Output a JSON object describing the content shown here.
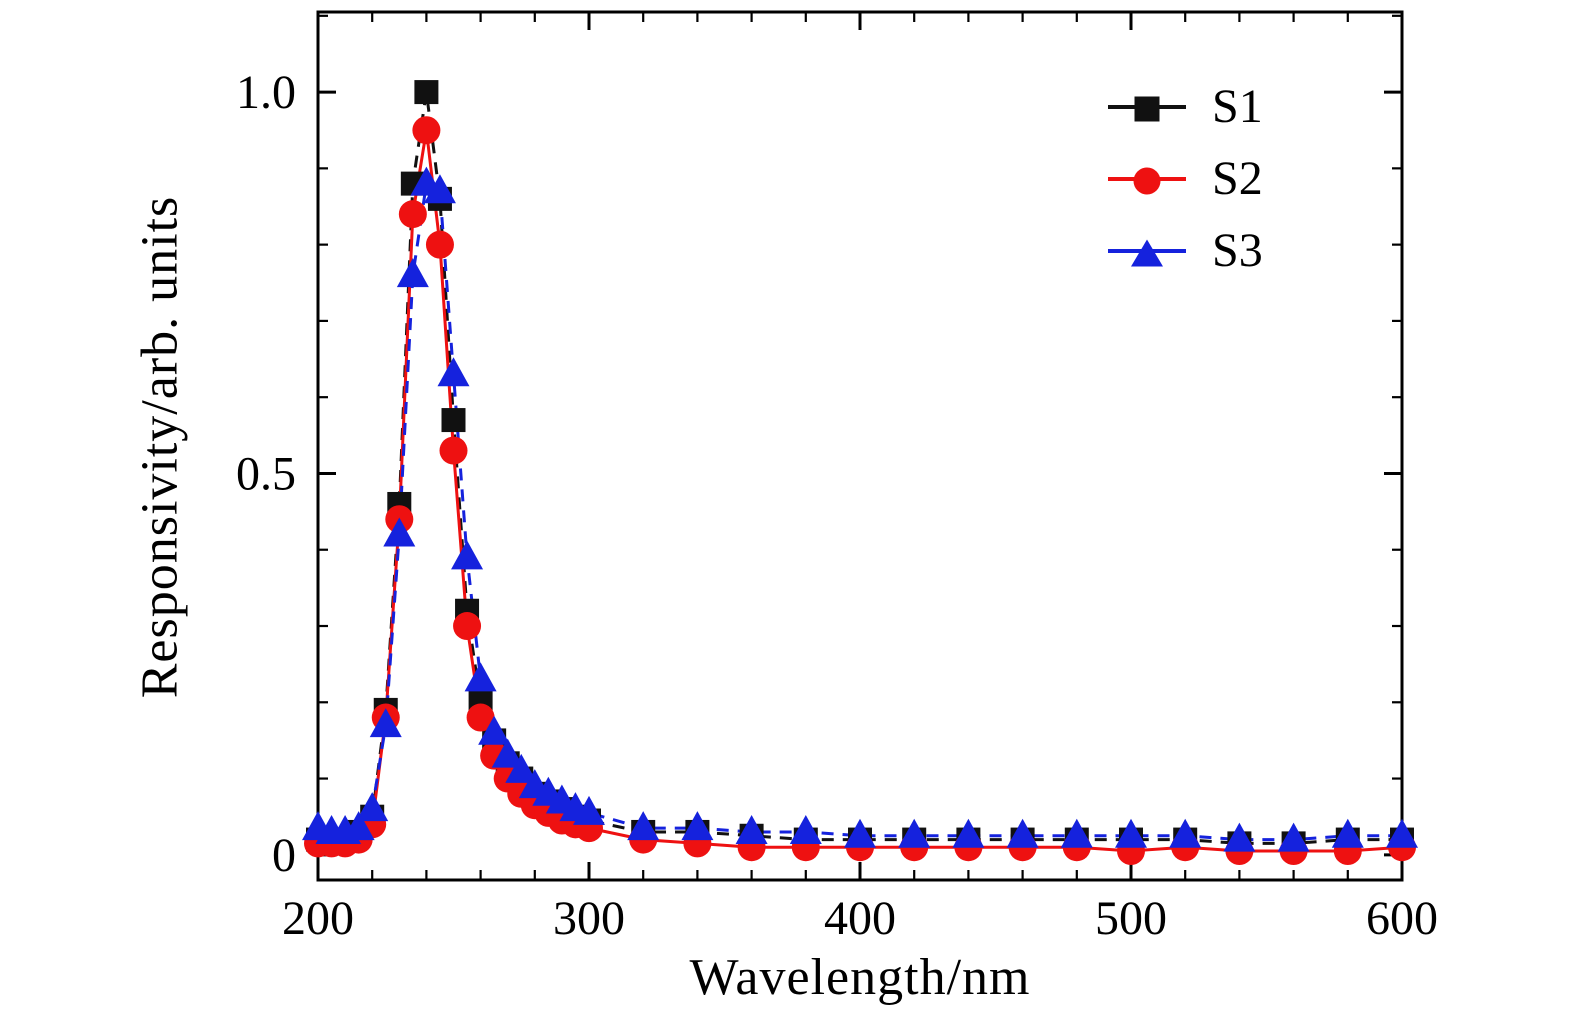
{
  "figure": {
    "background": "#ffffff",
    "xlabel": "Wavelength/nm",
    "ylabel": "Responsivity/arb. units"
  },
  "chart_data": {
    "type": "line",
    "title": "",
    "xlabel": "Wavelength/nm",
    "ylabel": "Responsivity/arb. units",
    "xlim": [
      200,
      600
    ],
    "ylim": [
      -0.033,
      1.105
    ],
    "xticks": [
      200,
      300,
      400,
      500,
      600
    ],
    "xtick_labels": [
      "200",
      "300",
      "400",
      "500",
      "600"
    ],
    "x_minor_step": 20,
    "yticks": [
      0,
      0.5,
      1.0
    ],
    "ytick_labels": [
      "0",
      "0.5",
      "1.0"
    ],
    "y_minor_step": 0.1,
    "grid": false,
    "legend_position": "upper-right-inside",
    "x": [
      200,
      205,
      210,
      215,
      220,
      225,
      230,
      235,
      240,
      245,
      250,
      255,
      260,
      265,
      270,
      275,
      280,
      285,
      290,
      295,
      300,
      320,
      340,
      360,
      380,
      400,
      420,
      440,
      460,
      480,
      500,
      520,
      540,
      560,
      580,
      600
    ],
    "series": [
      {
        "name": "S1",
        "color": "#111111",
        "marker": "square",
        "line": "dashed",
        "values": [
          0.02,
          0.02,
          0.02,
          0.03,
          0.05,
          0.19,
          0.46,
          0.88,
          1.0,
          0.86,
          0.57,
          0.32,
          0.2,
          0.15,
          0.12,
          0.1,
          0.08,
          0.07,
          0.06,
          0.05,
          0.045,
          0.03,
          0.03,
          0.025,
          0.02,
          0.02,
          0.02,
          0.02,
          0.02,
          0.02,
          0.02,
          0.02,
          0.015,
          0.015,
          0.02,
          0.02
        ]
      },
      {
        "name": "S2",
        "color": "#ee1111",
        "marker": "circle",
        "line": "solid",
        "values": [
          0.015,
          0.015,
          0.015,
          0.02,
          0.04,
          0.18,
          0.44,
          0.84,
          0.95,
          0.8,
          0.53,
          0.3,
          0.18,
          0.13,
          0.1,
          0.08,
          0.065,
          0.055,
          0.045,
          0.04,
          0.035,
          0.02,
          0.015,
          0.01,
          0.01,
          0.01,
          0.01,
          0.01,
          0.01,
          0.01,
          0.005,
          0.01,
          0.005,
          0.005,
          0.005,
          0.01
        ]
      },
      {
        "name": "S3",
        "color": "#1522dd",
        "marker": "triangle",
        "line": "dashed",
        "values": [
          0.035,
          0.03,
          0.03,
          0.035,
          0.06,
          0.17,
          0.42,
          0.76,
          0.88,
          0.87,
          0.63,
          0.39,
          0.23,
          0.16,
          0.13,
          0.11,
          0.09,
          0.08,
          0.07,
          0.06,
          0.055,
          0.035,
          0.035,
          0.03,
          0.03,
          0.025,
          0.025,
          0.025,
          0.025,
          0.025,
          0.025,
          0.025,
          0.02,
          0.02,
          0.025,
          0.025
        ]
      }
    ]
  }
}
